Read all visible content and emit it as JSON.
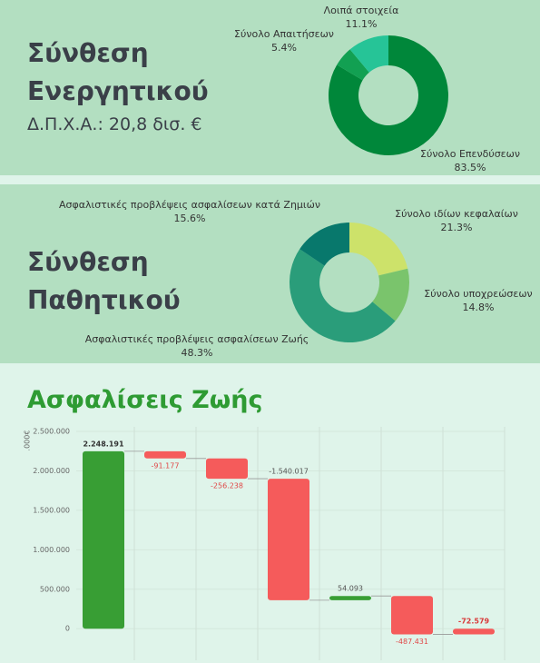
{
  "chart_data": [
    {
      "type": "pie",
      "title": "Σύνθεση Ενεργητικού",
      "subtitle": "Δ.Π.Χ.Α.: 20,8 δισ. €",
      "hole": 0.5,
      "categories": [
        "Σύνολο Επενδύσεων",
        "Σύνολο Απαιτήσεων",
        "Λοιπά στοιχεία"
      ],
      "values": [
        83.5,
        5.4,
        11.1
      ],
      "value_labels": [
        "83.5%",
        "5.4%",
        "11.1%"
      ],
      "colors": [
        "#00873a",
        "#12a052",
        "#26c497"
      ]
    },
    {
      "type": "pie",
      "title": "Σύνθεση Παθητικού",
      "hole": 0.5,
      "categories": [
        "Σύνολο ιδίων κεφαλαίων",
        "Σύνολο υποχρεώσεων",
        "Ασφαλιστικές προβλέψεις ασφαλίσεων Ζωής",
        "Ασφαλιστικές προβλέψεις ασφαλίσεων κατά Ζημιών"
      ],
      "values": [
        21.3,
        14.8,
        48.3,
        15.6
      ],
      "value_labels": [
        "21.3%",
        "14.8%",
        "48.3%",
        "15.6%"
      ],
      "colors": [
        "#cde26a",
        "#7ac46c",
        "#2a9d7a",
        "#08786c"
      ]
    },
    {
      "type": "waterfall",
      "title": "Ασφαλίσεις Ζωής",
      "y_label": ".000€",
      "values": [
        2248191,
        -91177,
        -256238,
        -1540017,
        54093,
        -487431,
        -72579
      ],
      "value_labels": [
        "2.248.191",
        "-91.177",
        "-256.238",
        "-1.540.017",
        "54.093",
        "-487.431",
        "-72.579"
      ],
      "measure": [
        "absolute",
        "relative",
        "relative",
        "relative",
        "relative",
        "relative",
        "total"
      ],
      "colors": {
        "positive": "#389e34",
        "negative": "#f55b5b"
      },
      "ylim": [
        -400000,
        2500000
      ],
      "yticks": [
        0,
        {
          "value": 500000,
          "label": "500.000"
        },
        {
          "value": 1000000,
          "label": "1.000.000"
        },
        {
          "value": 1500000,
          "label": "1.500.000"
        },
        {
          "value": 2000000,
          "label": "2.000.000"
        },
        {
          "value": 2500000,
          "label": "2.500.000"
        }
      ],
      "grid": true
    }
  ]
}
